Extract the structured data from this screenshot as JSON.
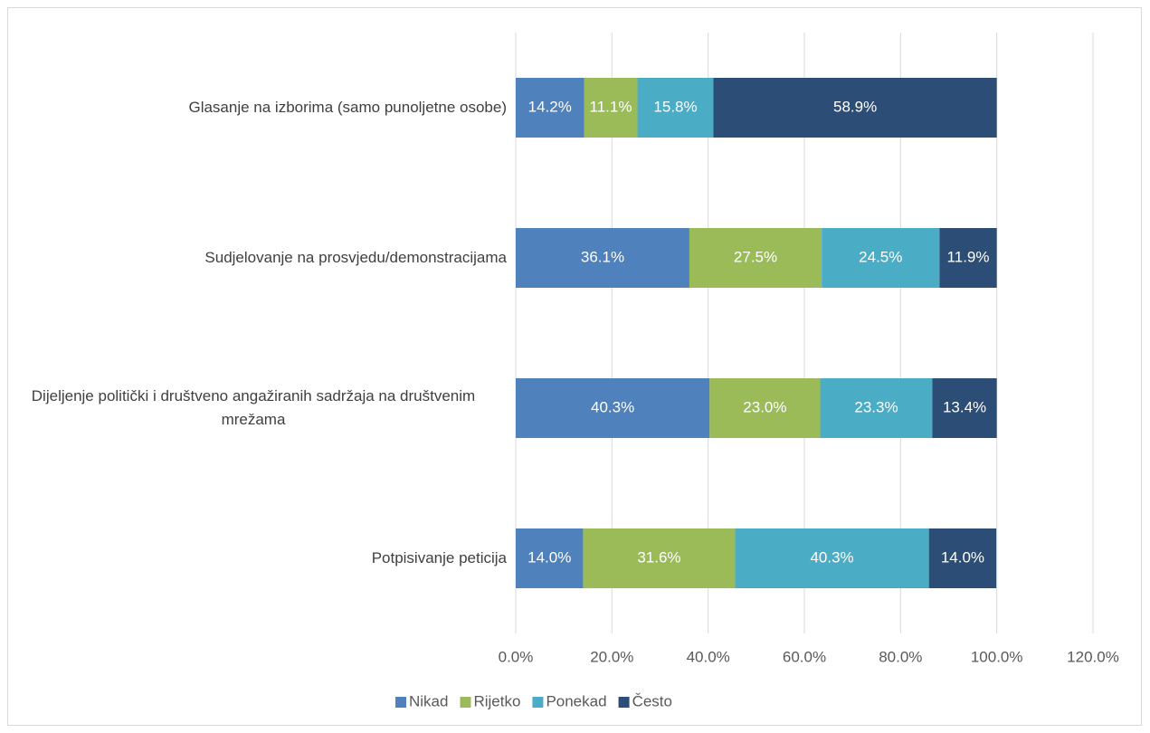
{
  "chart_data": {
    "type": "stacked_barh",
    "categories": [
      "Glasanje na izborima (samo punoljetne osobe)",
      "Sudjelovanje na prosvjedu/demonstracijama",
      "Dijeljenje politički i društveno angažiranih sadržaja na društvenim mrežama",
      "Potpisivanje peticija"
    ],
    "series": [
      {
        "name": "Nikad",
        "color": "#4f81bd",
        "values": [
          14.2,
          36.1,
          40.3,
          14.0
        ],
        "value_labels": [
          "14.2%",
          "36.1%",
          "40.3%",
          "14.0%"
        ]
      },
      {
        "name": "Rijetko",
        "color": "#9bbb59",
        "values": [
          11.1,
          27.5,
          23.0,
          31.6
        ],
        "value_labels": [
          "11.1%",
          "27.5%",
          "23.0%",
          "31.6%"
        ]
      },
      {
        "name": "Ponekad",
        "color": "#4bacc6",
        "values": [
          15.8,
          24.5,
          23.3,
          40.3
        ],
        "value_labels": [
          "15.8%",
          "24.5%",
          "23.3%",
          "40.3%"
        ]
      },
      {
        "name": "Često",
        "color": "#2c4d75",
        "values": [
          58.9,
          11.9,
          13.4,
          14.0
        ],
        "value_labels": [
          "58.9%",
          "11.9%",
          "13.4%",
          "14.0%"
        ]
      }
    ],
    "xlim": [
      0,
      120
    ],
    "xticks": [
      {
        "value": 0,
        "label": "0.0%"
      },
      {
        "value": 20,
        "label": "20.0%"
      },
      {
        "value": 40,
        "label": "40.0%"
      },
      {
        "value": 60,
        "label": "60.0%"
      },
      {
        "value": 80,
        "label": "80.0%"
      },
      {
        "value": 100,
        "label": "100.0%"
      },
      {
        "value": 120,
        "label": "120.0%"
      }
    ],
    "grid": true,
    "legend": "bottom"
  }
}
